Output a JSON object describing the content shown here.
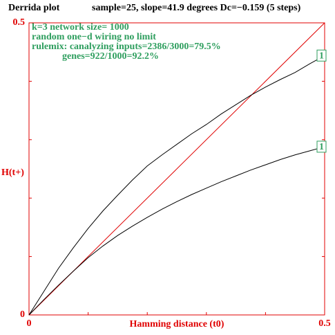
{
  "chart_data": {
    "type": "line",
    "title": "Derrida plot",
    "subtitle": "sample=25,  slope=41.9 degrees Dc=−0.159 (5 steps)",
    "annotations": [
      "k=3 network size= 1000",
      "random one−d wiring no limit",
      "rulemix: canalyzing inputs=2386/3000=79.5%",
      "genes=922/1000=92.2%"
    ],
    "x_label": "Hamming distance (t0)",
    "y_label": "H(t+)",
    "x": [
      0,
      0.025,
      0.05,
      0.075,
      0.1,
      0.125,
      0.15,
      0.175,
      0.2,
      0.225,
      0.25,
      0.275,
      0.3,
      0.325,
      0.35,
      0.375,
      0.4,
      0.425,
      0.45,
      0.475,
      0.5
    ],
    "series": [
      {
        "name": "1",
        "color": "#000000",
        "values": [
          0,
          0.04,
          0.08,
          0.115,
          0.148,
          0.178,
          0.205,
          0.231,
          0.255,
          0.274,
          0.292,
          0.31,
          0.326,
          0.344,
          0.36,
          0.376,
          0.39,
          0.403,
          0.415,
          0.43,
          0.444
        ]
      },
      {
        "name": "1",
        "color": "#000000",
        "values": [
          0,
          0.026,
          0.051,
          0.075,
          0.098,
          0.118,
          0.136,
          0.152,
          0.167,
          0.181,
          0.194,
          0.206,
          0.217,
          0.228,
          0.238,
          0.248,
          0.257,
          0.266,
          0.274,
          0.281,
          0.288
        ]
      }
    ],
    "xlim": [
      0,
      0.5
    ],
    "ylim": [
      0,
      0.5
    ],
    "xticks": [
      0,
      0.5
    ],
    "yticks": [
      0,
      0.5
    ],
    "minor_xticks": [
      0.1,
      0.2,
      0.3,
      0.4
    ],
    "minor_yticks": [
      0.1,
      0.2,
      0.3,
      0.4
    ],
    "diagonal": true,
    "axis_color": "#e00000",
    "label_color": "#2e9e5e"
  }
}
